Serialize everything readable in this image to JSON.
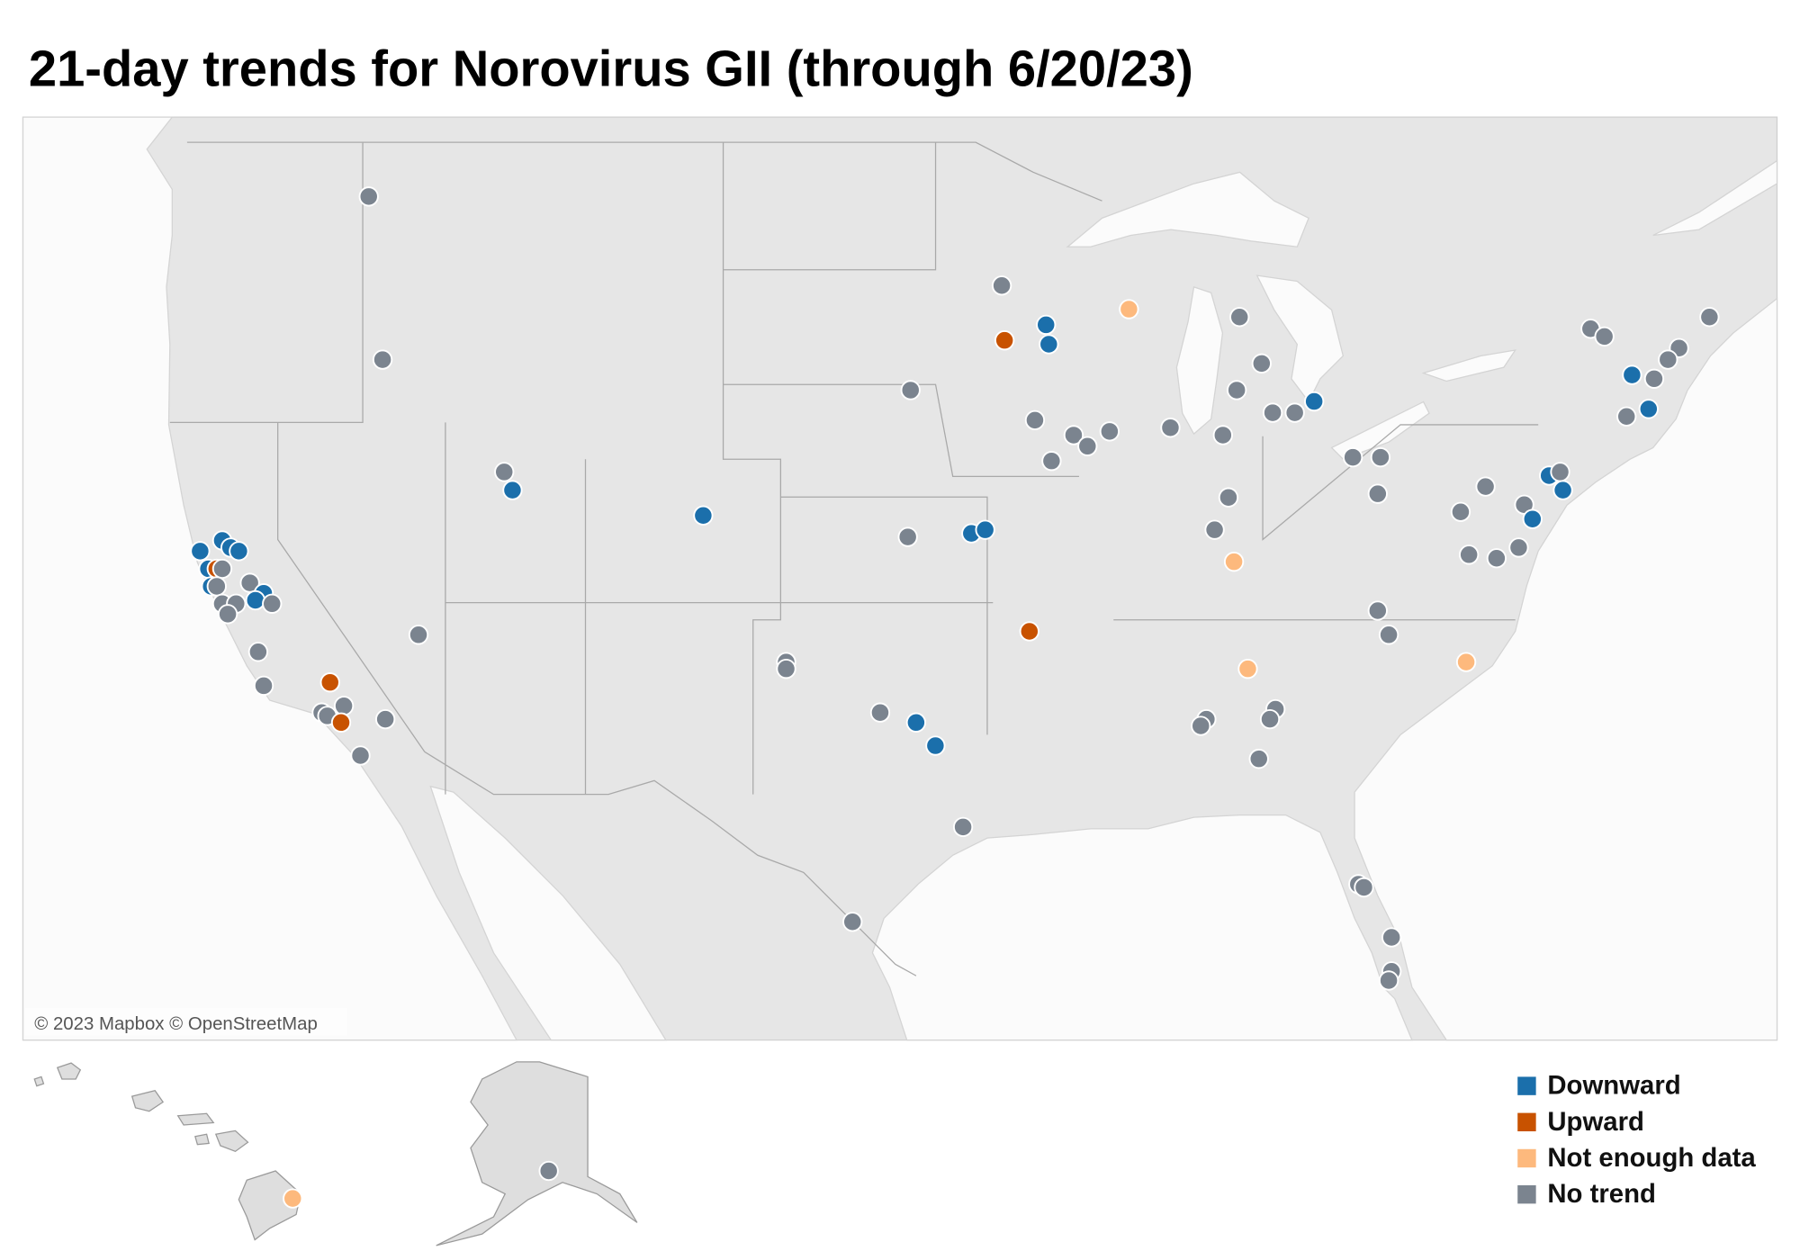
{
  "title": "21-day trends for Norovirus GII (through 6/20/23)",
  "attribution": "© 2023 Mapbox © OpenStreetMap",
  "legend": [
    {
      "label": "Downward",
      "color": "#1b6fab"
    },
    {
      "label": "Upward",
      "color": "#c85200"
    },
    {
      "label": "Not enough data",
      "color": "#fdb97d"
    },
    {
      "label": "No trend",
      "color": "#7b848f"
    }
  ],
  "sites": [
    {
      "lon": -117.1,
      "lat": 48.0,
      "trend": "No trend"
    },
    {
      "lon": -116.6,
      "lat": 43.9,
      "trend": "No trend"
    },
    {
      "lon": -112.2,
      "lat": 40.9,
      "trend": "No trend"
    },
    {
      "lon": -111.9,
      "lat": 40.4,
      "trend": "Downward"
    },
    {
      "lon": -105.0,
      "lat": 39.7,
      "trend": "Downward"
    },
    {
      "lon": -123.2,
      "lat": 38.7,
      "trend": "Downward"
    },
    {
      "lon": -122.4,
      "lat": 39.0,
      "trend": "Downward"
    },
    {
      "lon": -122.1,
      "lat": 38.8,
      "trend": "Downward"
    },
    {
      "lon": -121.8,
      "lat": 38.7,
      "trend": "Downward"
    },
    {
      "lon": -122.9,
      "lat": 38.2,
      "trend": "Downward"
    },
    {
      "lon": -122.6,
      "lat": 38.2,
      "trend": "Upward"
    },
    {
      "lon": -122.4,
      "lat": 38.2,
      "trend": "No trend"
    },
    {
      "lon": -122.8,
      "lat": 37.7,
      "trend": "Downward"
    },
    {
      "lon": -122.6,
      "lat": 37.7,
      "trend": "No trend"
    },
    {
      "lon": -122.4,
      "lat": 37.2,
      "trend": "No trend"
    },
    {
      "lon": -121.4,
      "lat": 37.8,
      "trend": "No trend"
    },
    {
      "lon": -121.9,
      "lat": 37.2,
      "trend": "No trend"
    },
    {
      "lon": -122.2,
      "lat": 36.9,
      "trend": "No trend"
    },
    {
      "lon": -120.9,
      "lat": 37.5,
      "trend": "Downward"
    },
    {
      "lon": -121.2,
      "lat": 37.3,
      "trend": "Downward"
    },
    {
      "lon": -120.6,
      "lat": 37.2,
      "trend": "No trend"
    },
    {
      "lon": -121.1,
      "lat": 35.8,
      "trend": "No trend"
    },
    {
      "lon": -120.9,
      "lat": 34.8,
      "trend": "No trend"
    },
    {
      "lon": -115.3,
      "lat": 36.3,
      "trend": "No trend"
    },
    {
      "lon": -118.5,
      "lat": 34.9,
      "trend": "Upward"
    },
    {
      "lon": -118.8,
      "lat": 34.0,
      "trend": "No trend"
    },
    {
      "lon": -118.6,
      "lat": 33.9,
      "trend": "No trend"
    },
    {
      "lon": -118.0,
      "lat": 34.2,
      "trend": "No trend"
    },
    {
      "lon": -118.1,
      "lat": 33.7,
      "trend": "Upward"
    },
    {
      "lon": -116.5,
      "lat": 33.8,
      "trend": "No trend"
    },
    {
      "lon": -117.4,
      "lat": 32.7,
      "trend": "No trend"
    },
    {
      "lon": -94.2,
      "lat": 45.8,
      "trend": "No trend"
    },
    {
      "lon": -94.1,
      "lat": 44.4,
      "trend": "Upward"
    },
    {
      "lon": -92.6,
      "lat": 44.8,
      "trend": "Downward"
    },
    {
      "lon": -92.5,
      "lat": 44.3,
      "trend": "Downward"
    },
    {
      "lon": -89.6,
      "lat": 45.2,
      "trend": "Not enough data"
    },
    {
      "lon": -85.6,
      "lat": 45.0,
      "trend": "No trend"
    },
    {
      "lon": -84.8,
      "lat": 43.8,
      "trend": "No trend"
    },
    {
      "lon": -85.7,
      "lat": 43.1,
      "trend": "No trend"
    },
    {
      "lon": -84.4,
      "lat": 42.5,
      "trend": "No trend"
    },
    {
      "lon": -83.6,
      "lat": 42.5,
      "trend": "No trend"
    },
    {
      "lon": -82.9,
      "lat": 42.8,
      "trend": "Downward"
    },
    {
      "lon": -97.5,
      "lat": 43.1,
      "trend": "No trend"
    },
    {
      "lon": -93.0,
      "lat": 42.3,
      "trend": "No trend"
    },
    {
      "lon": -91.6,
      "lat": 41.9,
      "trend": "No trend"
    },
    {
      "lon": -91.1,
      "lat": 41.6,
      "trend": "No trend"
    },
    {
      "lon": -90.3,
      "lat": 42.0,
      "trend": "No trend"
    },
    {
      "lon": -92.4,
      "lat": 41.2,
      "trend": "No trend"
    },
    {
      "lon": -88.1,
      "lat": 42.1,
      "trend": "No trend"
    },
    {
      "lon": -86.2,
      "lat": 41.9,
      "trend": "No trend"
    },
    {
      "lon": -86.0,
      "lat": 40.2,
      "trend": "No trend"
    },
    {
      "lon": -86.5,
      "lat": 39.3,
      "trend": "No trend"
    },
    {
      "lon": -85.8,
      "lat": 38.4,
      "trend": "Not enough data"
    },
    {
      "lon": -97.6,
      "lat": 39.1,
      "trend": "No trend"
    },
    {
      "lon": -95.3,
      "lat": 39.2,
      "trend": "Downward"
    },
    {
      "lon": -94.8,
      "lat": 39.3,
      "trend": "Downward"
    },
    {
      "lon": -93.2,
      "lat": 36.4,
      "trend": "Upward"
    },
    {
      "lon": -81.5,
      "lat": 41.3,
      "trend": "No trend"
    },
    {
      "lon": -80.5,
      "lat": 41.3,
      "trend": "No trend"
    },
    {
      "lon": -80.6,
      "lat": 40.3,
      "trend": "No trend"
    },
    {
      "lon": -77.6,
      "lat": 39.8,
      "trend": "No trend"
    },
    {
      "lon": -76.7,
      "lat": 40.5,
      "trend": "No trend"
    },
    {
      "lon": -77.3,
      "lat": 38.6,
      "trend": "No trend"
    },
    {
      "lon": -76.3,
      "lat": 38.5,
      "trend": "No trend"
    },
    {
      "lon": -75.5,
      "lat": 38.8,
      "trend": "No trend"
    },
    {
      "lon": -75.3,
      "lat": 40.0,
      "trend": "No trend"
    },
    {
      "lon": -75.0,
      "lat": 39.6,
      "trend": "Downward"
    },
    {
      "lon": -74.4,
      "lat": 40.8,
      "trend": "Downward"
    },
    {
      "lon": -74.0,
      "lat": 40.9,
      "trend": "No trend"
    },
    {
      "lon": -73.9,
      "lat": 40.4,
      "trend": "Downward"
    },
    {
      "lon": -80.6,
      "lat": 37.0,
      "trend": "No trend"
    },
    {
      "lon": -80.2,
      "lat": 36.3,
      "trend": "No trend"
    },
    {
      "lon": -77.4,
      "lat": 35.5,
      "trend": "Not enough data"
    },
    {
      "lon": -85.3,
      "lat": 35.3,
      "trend": "Not enough data"
    },
    {
      "lon": -102.0,
      "lat": 35.5,
      "trend": "No trend"
    },
    {
      "lon": -102.0,
      "lat": 35.3,
      "trend": "No trend"
    },
    {
      "lon": -98.6,
      "lat": 34.0,
      "trend": "No trend"
    },
    {
      "lon": -97.3,
      "lat": 33.7,
      "trend": "Downward"
    },
    {
      "lon": -96.6,
      "lat": 33.0,
      "trend": "Downward"
    },
    {
      "lon": -95.6,
      "lat": 30.5,
      "trend": "No trend"
    },
    {
      "lon": -99.6,
      "lat": 27.5,
      "trend": "No trend"
    },
    {
      "lon": -86.8,
      "lat": 33.8,
      "trend": "No trend"
    },
    {
      "lon": -87.0,
      "lat": 33.6,
      "trend": "No trend"
    },
    {
      "lon": -84.3,
      "lat": 34.1,
      "trend": "No trend"
    },
    {
      "lon": -84.5,
      "lat": 33.8,
      "trend": "No trend"
    },
    {
      "lon": -84.9,
      "lat": 32.6,
      "trend": "No trend"
    },
    {
      "lon": -81.3,
      "lat": 28.7,
      "trend": "No trend"
    },
    {
      "lon": -81.1,
      "lat": 28.6,
      "trend": "No trend"
    },
    {
      "lon": -80.1,
      "lat": 27.0,
      "trend": "No trend"
    },
    {
      "lon": -80.1,
      "lat": 25.9,
      "trend": "No trend"
    },
    {
      "lon": -80.2,
      "lat": 25.6,
      "trend": "No trend"
    },
    {
      "lon": -72.9,
      "lat": 44.7,
      "trend": "No trend"
    },
    {
      "lon": -72.4,
      "lat": 44.5,
      "trend": "No trend"
    },
    {
      "lon": -68.6,
      "lat": 45.0,
      "trend": "No trend"
    },
    {
      "lon": -69.7,
      "lat": 44.2,
      "trend": "No trend"
    },
    {
      "lon": -70.1,
      "lat": 43.9,
      "trend": "No trend"
    },
    {
      "lon": -71.4,
      "lat": 43.5,
      "trend": "Downward"
    },
    {
      "lon": -70.6,
      "lat": 43.4,
      "trend": "No trend"
    },
    {
      "lon": -71.6,
      "lat": 42.4,
      "trend": "No trend"
    },
    {
      "lon": -70.8,
      "lat": 42.6,
      "trend": "Downward"
    },
    {
      "lon": -155.1,
      "lat": 19.7,
      "trend": "Not enough data"
    },
    {
      "lon": -149.9,
      "lat": 61.2,
      "trend": "No trend"
    }
  ]
}
